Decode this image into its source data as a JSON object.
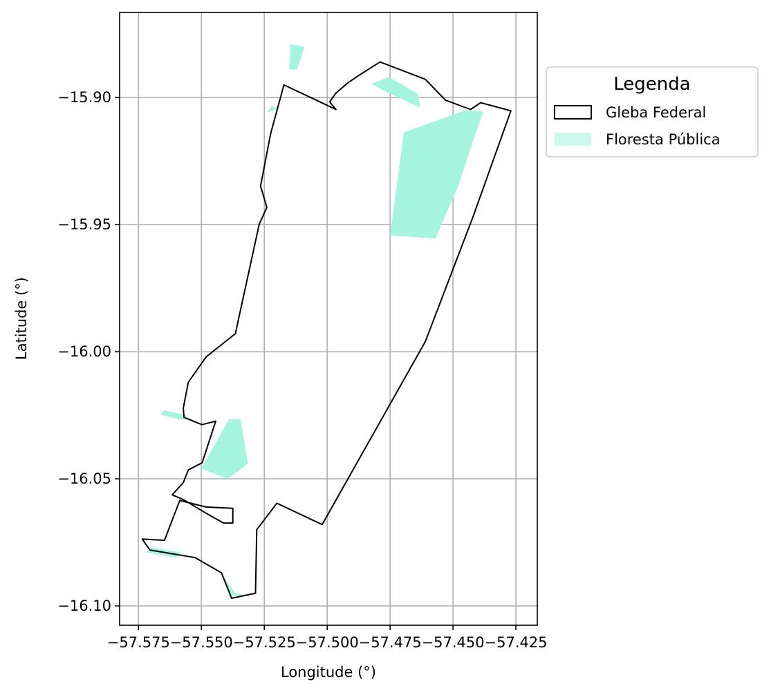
{
  "chart_data": {
    "type": "map",
    "xlabel": "Longitude (°)",
    "ylabel": "Latitude (°)",
    "xlim": [
      -57.5825,
      -57.4165
    ],
    "ylim": [
      -16.1076,
      -15.8665
    ],
    "x_ticks": [
      -57.575,
      -57.55,
      -57.525,
      -57.5,
      -57.475,
      -57.45,
      -57.425
    ],
    "x_tick_labels": [
      "−57.575",
      "−57.550",
      "−57.525",
      "−57.500",
      "−57.475",
      "−57.450",
      "−57.425"
    ],
    "y_ticks": [
      -15.9,
      -15.95,
      -16.0,
      -16.05,
      -16.1
    ],
    "y_tick_labels": [
      "−15.90",
      "−15.95",
      "−16.00",
      "−16.05",
      "−16.10"
    ],
    "grid": true,
    "legend": {
      "title": "Legenda",
      "placement": "outside-upper-right",
      "entries": [
        {
          "label": "Gleba Federal",
          "style": "outline"
        },
        {
          "label": "Floresta Pública",
          "style": "fill"
        }
      ]
    },
    "colors": {
      "gleba_outline": "#000000",
      "floresta_fill": "#a4f4de",
      "grid": "#b0b0b0"
    },
    "layers": {
      "gleba_federal": [
        [
          -57.5735,
          -16.0737
        ],
        [
          -57.5647,
          -16.0742
        ],
        [
          -57.5586,
          -16.0585
        ],
        [
          -57.5482,
          -16.0611
        ],
        [
          -57.5375,
          -16.0616
        ],
        [
          -57.5375,
          -16.0674
        ],
        [
          -57.5412,
          -16.0674
        ],
        [
          -57.5482,
          -16.0635
        ],
        [
          -57.5569,
          -16.0583
        ],
        [
          -57.5616,
          -16.0563
        ],
        [
          -57.5572,
          -16.0515
        ],
        [
          -57.5552,
          -16.0465
        ],
        [
          -57.5497,
          -16.0437
        ],
        [
          -57.5443,
          -16.0273
        ],
        [
          -57.5498,
          -16.0287
        ],
        [
          -57.5569,
          -16.0258
        ],
        [
          -57.5572,
          -16.0222
        ],
        [
          -57.5552,
          -16.012
        ],
        [
          -57.5481,
          -16.002
        ],
        [
          -57.5365,
          -15.9929
        ],
        [
          -57.533,
          -15.977
        ],
        [
          -57.527,
          -15.9498
        ],
        [
          -57.524,
          -15.9432
        ],
        [
          -57.5265,
          -15.9348
        ],
        [
          -57.5225,
          -15.9143
        ],
        [
          -57.5172,
          -15.895
        ],
        [
          -57.505,
          -15.9007
        ],
        [
          -57.4965,
          -15.9047
        ],
        [
          -57.499,
          -15.9017
        ],
        [
          -57.4965,
          -15.8982
        ],
        [
          -57.4915,
          -15.894
        ],
        [
          -57.487,
          -15.891
        ],
        [
          -57.479,
          -15.886
        ],
        [
          -57.461,
          -15.8928
        ],
        [
          -57.453,
          -15.901
        ],
        [
          -57.443,
          -15.9047
        ],
        [
          -57.439,
          -15.902
        ],
        [
          -57.427,
          -15.9052
        ],
        [
          -57.442,
          -15.9468
        ],
        [
          -57.461,
          -15.996
        ],
        [
          -57.502,
          -16.068
        ],
        [
          -57.52,
          -16.0596
        ],
        [
          -57.528,
          -16.07
        ],
        [
          -57.5285,
          -16.095
        ],
        [
          -57.538,
          -16.097
        ],
        [
          -57.542,
          -16.087
        ],
        [
          -57.5525,
          -16.081
        ],
        [
          -57.5615,
          -16.0795
        ],
        [
          -57.5705,
          -16.078
        ],
        [
          -57.5735,
          -16.0737
        ]
      ],
      "floresta_publica": [
        [
          [
            -57.475,
            -15.9542
          ],
          [
            -57.4695,
            -15.9137
          ],
          [
            -57.445,
            -15.905
          ],
          [
            -57.438,
            -15.9055
          ],
          [
            -57.442,
            -15.917
          ],
          [
            -57.448,
            -15.935
          ],
          [
            -57.457,
            -15.9555
          ]
        ],
        [
          [
            -57.4825,
            -15.8946
          ],
          [
            -57.4755,
            -15.892
          ],
          [
            -57.464,
            -15.8985
          ],
          [
            -57.463,
            -15.904
          ],
          [
            -57.478,
            -15.897
          ]
        ],
        [
          [
            -57.515,
            -15.8888
          ],
          [
            -57.5147,
            -15.879
          ],
          [
            -57.509,
            -15.88
          ],
          [
            -57.512,
            -15.889
          ]
        ],
        [
          [
            -57.55,
            -16.046
          ],
          [
            -57.539,
            -16.0265
          ],
          [
            -57.5345,
            -16.0265
          ],
          [
            -57.5315,
            -16.044
          ],
          [
            -57.5395,
            -16.05
          ]
        ],
        [
          [
            -57.565,
            -16.023
          ],
          [
            -57.556,
            -16.025
          ],
          [
            -57.557,
            -16.027
          ],
          [
            -57.566,
            -16.0248
          ]
        ],
        [
          [
            -57.5425,
            -16.087
          ],
          [
            -57.5365,
            -16.095
          ],
          [
            -57.532,
            -16.096
          ],
          [
            -57.5385,
            -16.096
          ]
        ],
        [
          [
            -57.572,
            -16.079
          ],
          [
            -57.56,
            -16.081
          ],
          [
            -57.558,
            -16.079
          ],
          [
            -57.57,
            -16.077
          ]
        ],
        [
          [
            -57.524,
            -15.906
          ],
          [
            -57.522,
            -15.903
          ],
          [
            -57.52,
            -15.9045
          ]
        ]
      ]
    }
  }
}
